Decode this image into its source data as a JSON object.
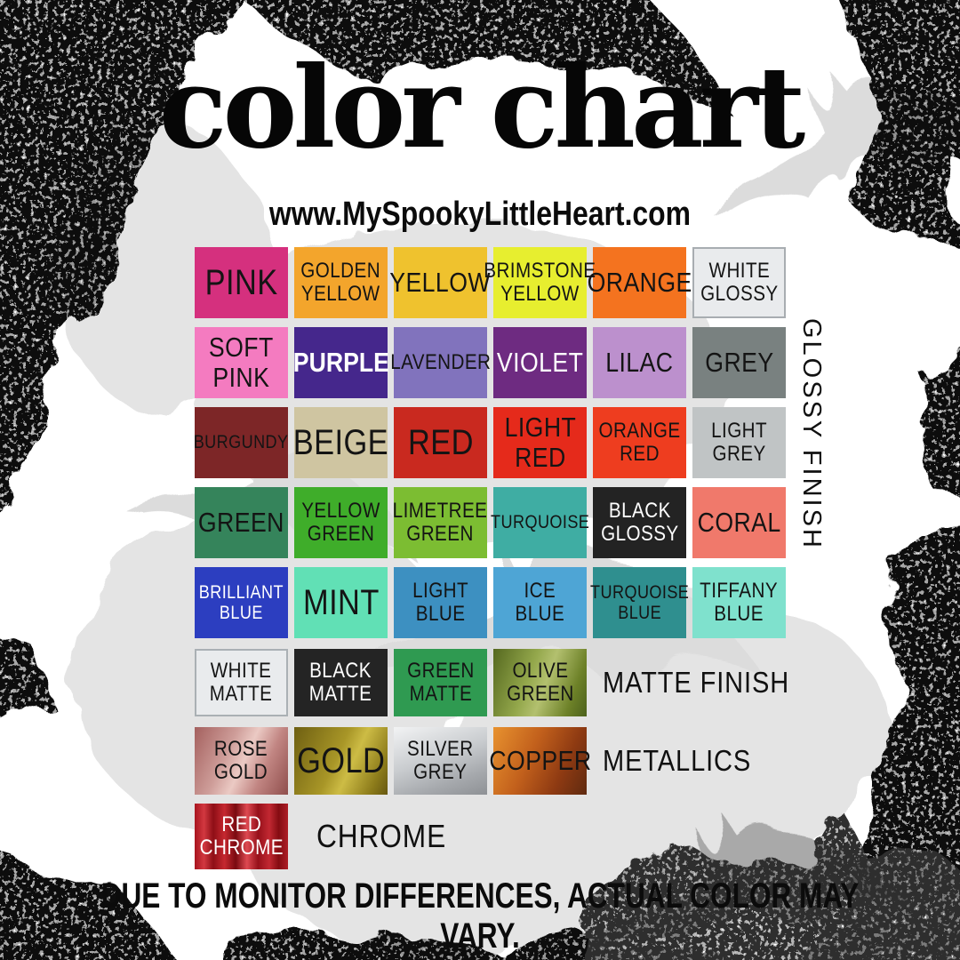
{
  "page": {
    "title": "color chart",
    "website": "www.MySpookyLittleHeart.com",
    "disclaimer": "DUE TO MONITOR DIFFERENCES, ACTUAL COLOR MAY VARY."
  },
  "background": {
    "base": "#FFFFFF",
    "grunge_dark": "#101010",
    "bat_light": "#DCDCDC",
    "bat_mid": "#A9A9A9",
    "blob_light": "#E4E4E4"
  },
  "chart_data": {
    "type": "table",
    "title": "color chart",
    "sections": [
      {
        "name": "GLOSSY FINISH",
        "rows": [
          [
            {
              "name": "pink",
              "label": "PINK",
              "bg": "#D5307E",
              "size": "xl"
            },
            {
              "name": "golden-yellow",
              "label": "GOLDEN\nYELLOW",
              "bg": "#F3A52C",
              "size": "md"
            },
            {
              "name": "yellow",
              "label": "YELLOW",
              "bg": "#EFC22E",
              "size": "lg"
            },
            {
              "name": "brimstone-yellow",
              "label": "BRIMSTONE\nYELLOW",
              "bg": "#E7EE2F",
              "size": "md"
            },
            {
              "name": "orange",
              "label": "ORANGE",
              "bg": "#F4731F",
              "size": "lg"
            },
            {
              "name": "white-glossy",
              "label": "WHITE\nGLOSSY",
              "bg": "#E9EBED",
              "border": "#A8ADB1",
              "size": "md"
            }
          ],
          [
            {
              "name": "soft-pink",
              "label": "SOFT\nPINK",
              "bg": "#F47BC0",
              "size": "lg"
            },
            {
              "name": "purple",
              "label": "PURPLE",
              "bg": "#45278C",
              "text": "#FFFFFF",
              "bold": true,
              "size": "lg"
            },
            {
              "name": "lavender",
              "label": "LAVENDER",
              "bg": "#8173BD",
              "size": "md"
            },
            {
              "name": "violet",
              "label": "VIOLET",
              "bg": "#6E2B81",
              "text": "#FFFFFF",
              "size": "lg"
            },
            {
              "name": "lilac",
              "label": "LILAC",
              "bg": "#BC90CD",
              "size": "lg"
            },
            {
              "name": "grey",
              "label": "GREY",
              "bg": "#798180",
              "size": "lg"
            }
          ],
          [
            {
              "name": "burgundy",
              "label": "BURGUNDY",
              "bg": "#7D2627",
              "size": "sm"
            },
            {
              "name": "beige",
              "label": "BEIGE",
              "bg": "#CFC5A1",
              "size": "xl"
            },
            {
              "name": "red",
              "label": "RED",
              "bg": "#C9291F",
              "size": "xl"
            },
            {
              "name": "light-red",
              "label": "LIGHT\nRED",
              "bg": "#E52A1B",
              "size": "lg"
            },
            {
              "name": "orange-red",
              "label": "ORANGE\nRED",
              "bg": "#EE3D1F",
              "size": "md"
            },
            {
              "name": "light-grey",
              "label": "LIGHT\nGREY",
              "bg": "#C0C4C5",
              "size": "md"
            }
          ],
          [
            {
              "name": "green",
              "label": "GREEN",
              "bg": "#35845B",
              "size": "lg"
            },
            {
              "name": "yellow-green",
              "label": "YELLOW\nGREEN",
              "bg": "#3FAD2A",
              "size": "md"
            },
            {
              "name": "limetree-green",
              "label": "LIMETREE\nGREEN",
              "bg": "#7CBD32",
              "size": "md"
            },
            {
              "name": "turquoise",
              "label": "TURQUOISE",
              "bg": "#3FADA3",
              "size": "sm"
            },
            {
              "name": "black-glossy",
              "label": "BLACK\nGLOSSY",
              "bg": "#232323",
              "text": "#FFFFFF",
              "size": "md"
            },
            {
              "name": "coral",
              "label": "CORAL",
              "bg": "#F0796B",
              "size": "lg"
            }
          ],
          [
            {
              "name": "brilliant-blue",
              "label": "BRILLIANT\nBLUE",
              "bg": "#2C3EC0",
              "text": "#FFFFFF",
              "size": "sm"
            },
            {
              "name": "mint",
              "label": "MINT",
              "bg": "#61E0B5",
              "size": "xl"
            },
            {
              "name": "light-blue",
              "label": "LIGHT\nBLUE",
              "bg": "#3D90C1",
              "size": "md"
            },
            {
              "name": "ice-blue",
              "label": "ICE\nBLUE",
              "bg": "#4EA5D5",
              "size": "md"
            },
            {
              "name": "turquoise-blue",
              "label": "TURQUOISE\nBLUE",
              "bg": "#2F8F8F",
              "size": "sm"
            },
            {
              "name": "tiffany-blue",
              "label": "TIFFANY\nBLUE",
              "bg": "#7FE1CD",
              "size": "md"
            }
          ]
        ]
      },
      {
        "name": "MATTE FINISH",
        "rows": [
          [
            {
              "name": "white-matte",
              "label": "WHITE\nMATTE",
              "bg": "#E9EBED",
              "border": "#AAB0B4",
              "size": "md"
            },
            {
              "name": "black-matte",
              "label": "BLACK\nMATTE",
              "bg": "#242424",
              "text": "#FFFFFF",
              "size": "md"
            },
            {
              "name": "green-matte",
              "label": "GREEN\nMATTE",
              "bg": "#2F9A51",
              "size": "md"
            },
            {
              "name": "olive-green",
              "label": "OLIVE\nGREEN",
              "gradient": {
                "angle": 110,
                "stops": [
                  "#55681F 0%",
                  "#93A74B 38%",
                  "#B3C06F 55%",
                  "#6D8128 82%",
                  "#4C611C 100%"
                ]
              },
              "size": "md"
            }
          ]
        ]
      },
      {
        "name": "METALLICS",
        "rows": [
          [
            {
              "name": "rose-gold",
              "label": "ROSE\nGOLD",
              "gradient": {
                "angle": 115,
                "stops": [
                  "#A4605E 0%",
                  "#CE9D99 35%",
                  "#EBCAC4 52%",
                  "#C18582 72%",
                  "#8F4E4C 100%"
                ]
              },
              "size": "md"
            },
            {
              "name": "gold",
              "label": "GOLD",
              "gradient": {
                "angle": 115,
                "stops": [
                  "#6E5F12 0%",
                  "#A89627 45%",
                  "#CDBC45 60%",
                  "#8D7C1B 85%",
                  "#665710 100%"
                ]
              },
              "size": "xl"
            },
            {
              "name": "silver-grey",
              "label": "SILVER\nGREY",
              "gradient": {
                "angle": 160,
                "stops": [
                  "#F2F3F4 0%",
                  "#C9CCCF 45%",
                  "#A6A9AD 75%",
                  "#8E9195 100%"
                ]
              },
              "size": "md"
            },
            {
              "name": "copper",
              "label": "COPPER",
              "gradient": {
                "angle": 115,
                "stops": [
                  "#E8922F 0%",
                  "#C2601C 40%",
                  "#8E3A12 72%",
                  "#5F2A10 100%"
                ]
              },
              "size": "lg"
            }
          ]
        ]
      },
      {
        "name": "CHROME",
        "rows": [
          [
            {
              "name": "red-chrome",
              "label": "RED\nCHROME",
              "text": "#FFFFFF",
              "gradient": {
                "angle": 90,
                "stops": [
                  "#A8141E 0%",
                  "#D23840 10%",
                  "#8E0E16 20%",
                  "#C62830 32%",
                  "#7A0A10 44%",
                  "#DE4A52 56%",
                  "#96101A 68%",
                  "#C22832 80%",
                  "#840C12 90%",
                  "#AE1E26 100%"
                ]
              },
              "size": "md"
            }
          ]
        ]
      }
    ]
  }
}
